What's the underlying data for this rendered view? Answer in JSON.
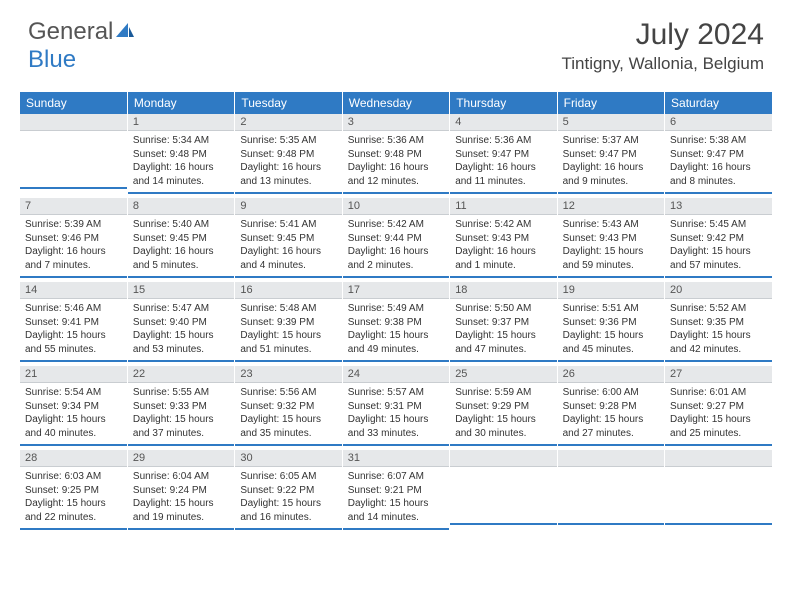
{
  "logo": {
    "text1": "General",
    "text2": "Blue"
  },
  "title": "July 2024",
  "location": "Tintigny, Wallonia, Belgium",
  "header_bg": "#2f7ac4",
  "header_text": "#ffffff",
  "daynum_bg": "#e6e8ea",
  "row_border": "#2f7ac4",
  "days": [
    "Sunday",
    "Monday",
    "Tuesday",
    "Wednesday",
    "Thursday",
    "Friday",
    "Saturday"
  ],
  "weeks": [
    [
      null,
      {
        "n": "1",
        "sr": "Sunrise: 5:34 AM",
        "ss": "Sunset: 9:48 PM",
        "dl": "Daylight: 16 hours and 14 minutes."
      },
      {
        "n": "2",
        "sr": "Sunrise: 5:35 AM",
        "ss": "Sunset: 9:48 PM",
        "dl": "Daylight: 16 hours and 13 minutes."
      },
      {
        "n": "3",
        "sr": "Sunrise: 5:36 AM",
        "ss": "Sunset: 9:48 PM",
        "dl": "Daylight: 16 hours and 12 minutes."
      },
      {
        "n": "4",
        "sr": "Sunrise: 5:36 AM",
        "ss": "Sunset: 9:47 PM",
        "dl": "Daylight: 16 hours and 11 minutes."
      },
      {
        "n": "5",
        "sr": "Sunrise: 5:37 AM",
        "ss": "Sunset: 9:47 PM",
        "dl": "Daylight: 16 hours and 9 minutes."
      },
      {
        "n": "6",
        "sr": "Sunrise: 5:38 AM",
        "ss": "Sunset: 9:47 PM",
        "dl": "Daylight: 16 hours and 8 minutes."
      }
    ],
    [
      {
        "n": "7",
        "sr": "Sunrise: 5:39 AM",
        "ss": "Sunset: 9:46 PM",
        "dl": "Daylight: 16 hours and 7 minutes."
      },
      {
        "n": "8",
        "sr": "Sunrise: 5:40 AM",
        "ss": "Sunset: 9:45 PM",
        "dl": "Daylight: 16 hours and 5 minutes."
      },
      {
        "n": "9",
        "sr": "Sunrise: 5:41 AM",
        "ss": "Sunset: 9:45 PM",
        "dl": "Daylight: 16 hours and 4 minutes."
      },
      {
        "n": "10",
        "sr": "Sunrise: 5:42 AM",
        "ss": "Sunset: 9:44 PM",
        "dl": "Daylight: 16 hours and 2 minutes."
      },
      {
        "n": "11",
        "sr": "Sunrise: 5:42 AM",
        "ss": "Sunset: 9:43 PM",
        "dl": "Daylight: 16 hours and 1 minute."
      },
      {
        "n": "12",
        "sr": "Sunrise: 5:43 AM",
        "ss": "Sunset: 9:43 PM",
        "dl": "Daylight: 15 hours and 59 minutes."
      },
      {
        "n": "13",
        "sr": "Sunrise: 5:45 AM",
        "ss": "Sunset: 9:42 PM",
        "dl": "Daylight: 15 hours and 57 minutes."
      }
    ],
    [
      {
        "n": "14",
        "sr": "Sunrise: 5:46 AM",
        "ss": "Sunset: 9:41 PM",
        "dl": "Daylight: 15 hours and 55 minutes."
      },
      {
        "n": "15",
        "sr": "Sunrise: 5:47 AM",
        "ss": "Sunset: 9:40 PM",
        "dl": "Daylight: 15 hours and 53 minutes."
      },
      {
        "n": "16",
        "sr": "Sunrise: 5:48 AM",
        "ss": "Sunset: 9:39 PM",
        "dl": "Daylight: 15 hours and 51 minutes."
      },
      {
        "n": "17",
        "sr": "Sunrise: 5:49 AM",
        "ss": "Sunset: 9:38 PM",
        "dl": "Daylight: 15 hours and 49 minutes."
      },
      {
        "n": "18",
        "sr": "Sunrise: 5:50 AM",
        "ss": "Sunset: 9:37 PM",
        "dl": "Daylight: 15 hours and 47 minutes."
      },
      {
        "n": "19",
        "sr": "Sunrise: 5:51 AM",
        "ss": "Sunset: 9:36 PM",
        "dl": "Daylight: 15 hours and 45 minutes."
      },
      {
        "n": "20",
        "sr": "Sunrise: 5:52 AM",
        "ss": "Sunset: 9:35 PM",
        "dl": "Daylight: 15 hours and 42 minutes."
      }
    ],
    [
      {
        "n": "21",
        "sr": "Sunrise: 5:54 AM",
        "ss": "Sunset: 9:34 PM",
        "dl": "Daylight: 15 hours and 40 minutes."
      },
      {
        "n": "22",
        "sr": "Sunrise: 5:55 AM",
        "ss": "Sunset: 9:33 PM",
        "dl": "Daylight: 15 hours and 37 minutes."
      },
      {
        "n": "23",
        "sr": "Sunrise: 5:56 AM",
        "ss": "Sunset: 9:32 PM",
        "dl": "Daylight: 15 hours and 35 minutes."
      },
      {
        "n": "24",
        "sr": "Sunrise: 5:57 AM",
        "ss": "Sunset: 9:31 PM",
        "dl": "Daylight: 15 hours and 33 minutes."
      },
      {
        "n": "25",
        "sr": "Sunrise: 5:59 AM",
        "ss": "Sunset: 9:29 PM",
        "dl": "Daylight: 15 hours and 30 minutes."
      },
      {
        "n": "26",
        "sr": "Sunrise: 6:00 AM",
        "ss": "Sunset: 9:28 PM",
        "dl": "Daylight: 15 hours and 27 minutes."
      },
      {
        "n": "27",
        "sr": "Sunrise: 6:01 AM",
        "ss": "Sunset: 9:27 PM",
        "dl": "Daylight: 15 hours and 25 minutes."
      }
    ],
    [
      {
        "n": "28",
        "sr": "Sunrise: 6:03 AM",
        "ss": "Sunset: 9:25 PM",
        "dl": "Daylight: 15 hours and 22 minutes."
      },
      {
        "n": "29",
        "sr": "Sunrise: 6:04 AM",
        "ss": "Sunset: 9:24 PM",
        "dl": "Daylight: 15 hours and 19 minutes."
      },
      {
        "n": "30",
        "sr": "Sunrise: 6:05 AM",
        "ss": "Sunset: 9:22 PM",
        "dl": "Daylight: 15 hours and 16 minutes."
      },
      {
        "n": "31",
        "sr": "Sunrise: 6:07 AM",
        "ss": "Sunset: 9:21 PM",
        "dl": "Daylight: 15 hours and 14 minutes."
      },
      null,
      null,
      null
    ]
  ]
}
